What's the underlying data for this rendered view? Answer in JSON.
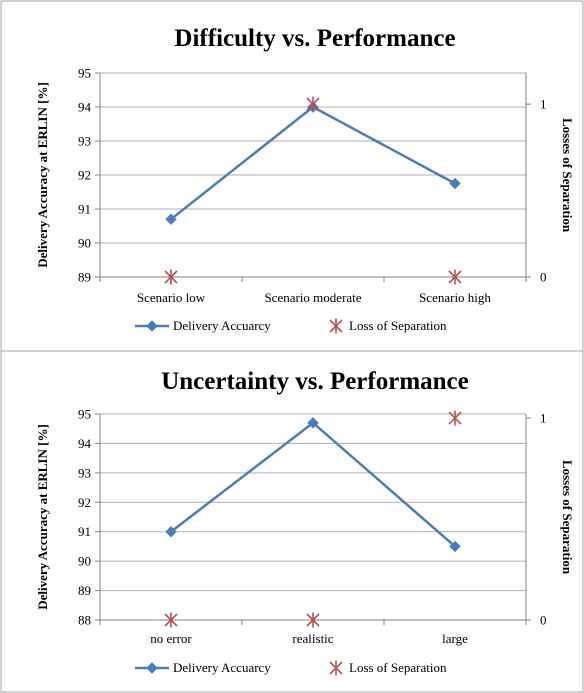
{
  "chart_data": [
    {
      "type": "line",
      "title": "Difficulty vs. Performance",
      "categories": [
        "Scenario low",
        "Scenario moderate",
        "Scenario high"
      ],
      "ylabel": "Delivery Accuracy at ERLIN [%]",
      "y2label": "Losses of Separation",
      "ylim": [
        89,
        95
      ],
      "yticks": [
        89,
        90,
        91,
        92,
        93,
        94,
        95
      ],
      "y2lim": [
        0,
        1.18
      ],
      "y2ticks": [
        0,
        1
      ],
      "grid": true,
      "legend_position": "bottom",
      "series": [
        {
          "name": "Delivery Accuarcy",
          "axis": "left",
          "marker": "diamond",
          "color": "#4a7ebb",
          "values": [
            90.7,
            94.0,
            91.75
          ]
        },
        {
          "name": "Loss of Separation",
          "axis": "right",
          "marker": "star",
          "color": "#b8504f",
          "line": false,
          "values": [
            0,
            1,
            0
          ]
        }
      ]
    },
    {
      "type": "line",
      "title": "Uncertainty vs. Performance",
      "categories": [
        "no error",
        "realistic",
        "large"
      ],
      "ylabel": "Delivery Accuracy at ERLIN [%]",
      "y2label": "Losses of Separation",
      "ylim": [
        88,
        95
      ],
      "yticks": [
        88,
        89,
        90,
        91,
        92,
        93,
        94,
        95
      ],
      "y2lim": [
        0,
        1.02
      ],
      "y2ticks": [
        0,
        1
      ],
      "grid": true,
      "legend_position": "bottom",
      "series": [
        {
          "name": "Delivery Accuarcy",
          "axis": "left",
          "marker": "diamond",
          "color": "#4a7ebb",
          "values": [
            91.0,
            94.7,
            90.5
          ]
        },
        {
          "name": "Loss of Separation",
          "axis": "right",
          "marker": "star",
          "color": "#b8504f",
          "line": false,
          "values": [
            0,
            0,
            1
          ]
        }
      ]
    }
  ]
}
